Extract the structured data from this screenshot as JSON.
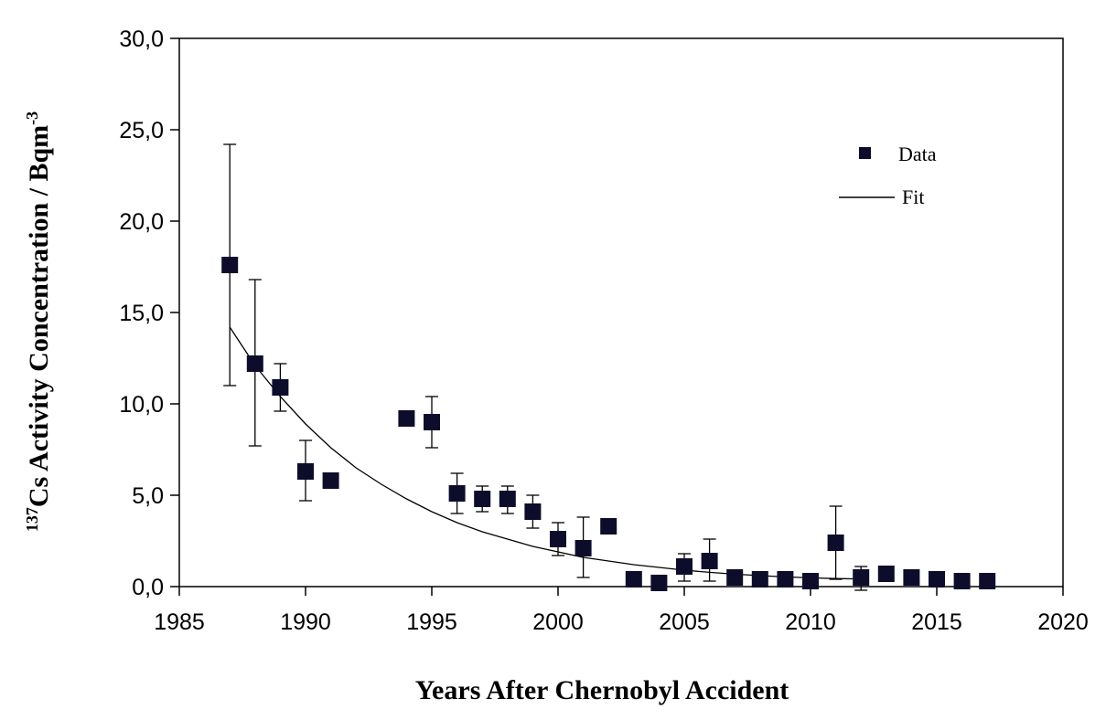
{
  "chart_data": {
    "type": "scatter",
    "title": "",
    "xlabel": "Years After Chernobyl  Accident",
    "ylabel": {
      "superscript": "137",
      "main": "Cs Activity Concentration / Bqm",
      "unit_superscript": "-3"
    },
    "xlim": [
      1985,
      2020
    ],
    "ylim": [
      0,
      30
    ],
    "x_ticks": [
      1985,
      1990,
      1995,
      2000,
      2005,
      2010,
      2015,
      2020
    ],
    "x_tick_labels": [
      "1985",
      "1990",
      "1995",
      "2000",
      "2005",
      "2010",
      "2015",
      "2020"
    ],
    "y_ticks": [
      0,
      5,
      10,
      15,
      20,
      25,
      30
    ],
    "y_tick_labels": [
      "0,0",
      "5,0",
      "10,0",
      "15,0",
      "20,0",
      "25,0",
      "30,0"
    ],
    "grid": false,
    "legend": {
      "placement": "top-right",
      "entries": [
        {
          "label": "Data",
          "marker": "square"
        },
        {
          "label": "Fit",
          "marker": "line"
        }
      ]
    },
    "series": [
      {
        "name": "Data",
        "kind": "points",
        "color": "#0d0d2b",
        "points": [
          {
            "x": 1987,
            "y": 17.6,
            "err_low": 11.0,
            "err_high": 24.2
          },
          {
            "x": 1988,
            "y": 12.2,
            "err_low": 7.7,
            "err_high": 16.8
          },
          {
            "x": 1989,
            "y": 10.9,
            "err_low": 9.6,
            "err_high": 12.2
          },
          {
            "x": 1990,
            "y": 6.3,
            "err_low": 4.7,
            "err_high": 8.0
          },
          {
            "x": 1991,
            "y": 5.8
          },
          {
            "x": 1994,
            "y": 9.2
          },
          {
            "x": 1995,
            "y": 9.0,
            "err_low": 7.6,
            "err_high": 10.4
          },
          {
            "x": 1996,
            "y": 5.1,
            "err_low": 4.0,
            "err_high": 6.2
          },
          {
            "x": 1997,
            "y": 4.8,
            "err_low": 4.1,
            "err_high": 5.5
          },
          {
            "x": 1998,
            "y": 4.8,
            "err_low": 4.0,
            "err_high": 5.5
          },
          {
            "x": 1999,
            "y": 4.1,
            "err_low": 3.2,
            "err_high": 5.0
          },
          {
            "x": 2000,
            "y": 2.6,
            "err_low": 1.7,
            "err_high": 3.5
          },
          {
            "x": 2001,
            "y": 2.1,
            "err_low": 0.5,
            "err_high": 3.8
          },
          {
            "x": 2002,
            "y": 3.3
          },
          {
            "x": 2003,
            "y": 0.4
          },
          {
            "x": 2004,
            "y": 0.2
          },
          {
            "x": 2005,
            "y": 1.1,
            "err_low": 0.3,
            "err_high": 1.8
          },
          {
            "x": 2006,
            "y": 1.4,
            "err_low": 0.3,
            "err_high": 2.6
          },
          {
            "x": 2007,
            "y": 0.5
          },
          {
            "x": 2008,
            "y": 0.4
          },
          {
            "x": 2009,
            "y": 0.4
          },
          {
            "x": 2010,
            "y": 0.3
          },
          {
            "x": 2011,
            "y": 2.4,
            "err_low": 0.4,
            "err_high": 4.4
          },
          {
            "x": 2012,
            "y": 0.5,
            "err_low": -0.2,
            "err_high": 1.1
          },
          {
            "x": 2013,
            "y": 0.7,
            "err_low": 0.3,
            "err_high": 1.1
          },
          {
            "x": 2014,
            "y": 0.5
          },
          {
            "x": 2015,
            "y": 0.4
          },
          {
            "x": 2016,
            "y": 0.3
          },
          {
            "x": 2017,
            "y": 0.3
          }
        ]
      },
      {
        "name": "Fit",
        "kind": "line",
        "color": "#000000",
        "x": [
          1987,
          1988,
          1989,
          1990,
          1991,
          1992,
          1993,
          1994,
          1995,
          1996,
          1997,
          1998,
          1999,
          2000,
          2001,
          2002,
          2003,
          2004,
          2005,
          2006,
          2007,
          2008,
          2009,
          2010,
          2011,
          2012
        ],
        "y": [
          14.2,
          12.1,
          10.4,
          8.9,
          7.6,
          6.5,
          5.6,
          4.8,
          4.1,
          3.5,
          3.0,
          2.6,
          2.2,
          1.9,
          1.6,
          1.4,
          1.2,
          1.05,
          0.9,
          0.78,
          0.68,
          0.6,
          0.53,
          0.48,
          0.44,
          0.42
        ]
      }
    ]
  }
}
